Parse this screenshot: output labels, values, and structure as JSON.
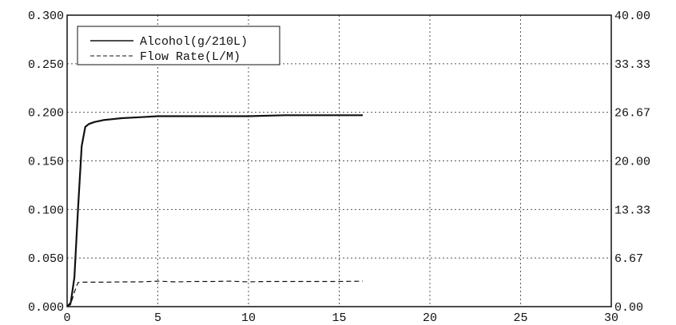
{
  "chart_data": {
    "type": "line",
    "title": "",
    "xlabel": "",
    "ylabel": "",
    "xlim": [
      0,
      30
    ],
    "ylim_left": [
      0,
      0.3
    ],
    "ylim_right": [
      0,
      40
    ],
    "x_ticks": [
      "0",
      "5",
      "10",
      "15",
      "20",
      "25",
      "30"
    ],
    "y_left_ticks": [
      "0.000",
      "0.050",
      "0.100",
      "0.150",
      "0.200",
      "0.250",
      "0.300"
    ],
    "y_right_ticks": [
      "0.00",
      "6.67",
      "13.33",
      "20.00",
      "26.67",
      "33.33",
      "40.00"
    ],
    "grid": true,
    "legend_position": "top-left",
    "series": [
      {
        "name": "Alcohol(g/210L)",
        "axis": "left",
        "line_style": "solid",
        "color": "#111111",
        "x": [
          0.0,
          0.2,
          0.4,
          0.6,
          0.8,
          1.0,
          1.2,
          1.5,
          2.0,
          2.5,
          3.0,
          4.0,
          5.0,
          6.0,
          8.0,
          10.0,
          12.0,
          14.0,
          16.3
        ],
        "y": [
          0.0,
          0.004,
          0.03,
          0.1,
          0.165,
          0.185,
          0.188,
          0.19,
          0.192,
          0.193,
          0.194,
          0.195,
          0.196,
          0.196,
          0.196,
          0.196,
          0.197,
          0.197,
          0.197
        ]
      },
      {
        "name": "Flow Rate(L/M)",
        "axis": "right",
        "line_style": "dashed",
        "color": "#111111",
        "x": [
          0.0,
          0.2,
          0.4,
          0.6,
          0.8,
          1.0,
          2.0,
          3.0,
          4.0,
          5.0,
          6.0,
          7.0,
          8.0,
          9.0,
          10.0,
          11.0,
          12.0,
          13.0,
          14.0,
          15.0,
          16.3
        ],
        "y": [
          0.0,
          0.3,
          2.0,
          3.3,
          3.35,
          3.35,
          3.35,
          3.4,
          3.4,
          3.5,
          3.4,
          3.45,
          3.45,
          3.5,
          3.4,
          3.45,
          3.45,
          3.45,
          3.45,
          3.45,
          3.5
        ]
      }
    ]
  }
}
